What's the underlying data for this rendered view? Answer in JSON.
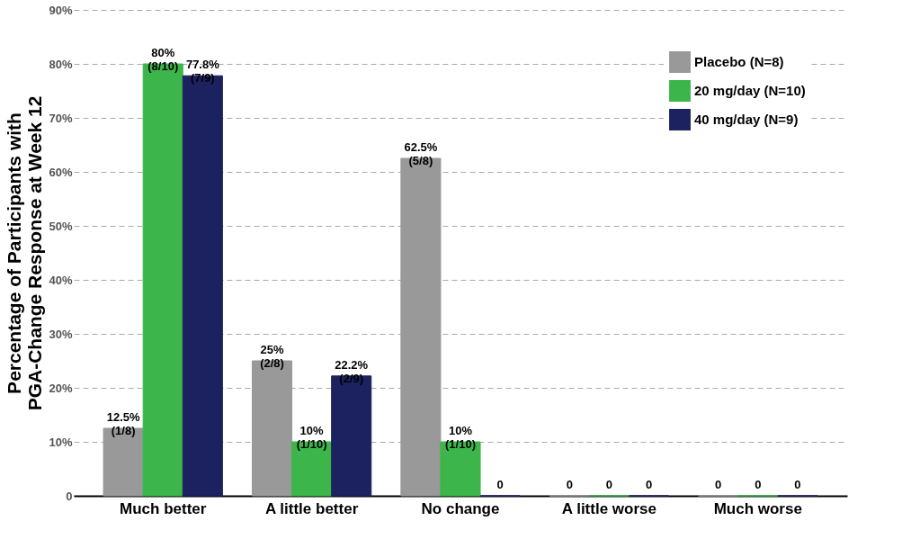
{
  "chart_data": {
    "type": "bar",
    "ylabel": "Percentage of Participants with\nPGA-Change Response at Week 12",
    "categories": [
      "Much better",
      "A little better",
      "No change",
      "A little worse",
      "Much worse"
    ],
    "series": [
      {
        "name": "Placebo (N=8)",
        "color": "#999999",
        "values": [
          12.5,
          25,
          62.5,
          0,
          0
        ],
        "value_labels": [
          "12.5%\n(1/8)",
          "25%\n(2/8)",
          "62.5%\n(5/8)",
          "0",
          "0"
        ]
      },
      {
        "name": "20 mg/day (N=10)",
        "color": "#3cb54a",
        "values": [
          80,
          10,
          10,
          0,
          0
        ],
        "value_labels": [
          "80%\n(8/10)",
          "10%\n(1/10)",
          "10%\n(1/10)",
          "0",
          "0"
        ]
      },
      {
        "name": "40 mg/day (N=9)",
        "color": "#1c2260",
        "values": [
          77.8,
          22.2,
          0,
          0,
          0
        ],
        "value_labels": [
          "77.8%\n(7/9)",
          "22.2%\n(2/9)",
          "0",
          "0",
          "0"
        ]
      }
    ],
    "ylim": [
      0,
      90
    ],
    "yticks": [
      0,
      {
        "value": 10,
        "label": "10%"
      },
      {
        "value": 20,
        "label": "20%"
      },
      {
        "value": 30,
        "label": "30%"
      },
      {
        "value": 40,
        "label": "40%"
      },
      {
        "value": 50,
        "label": "50%"
      },
      {
        "value": 60,
        "label": "60%"
      },
      {
        "value": 70,
        "label": "70%"
      },
      {
        "value": 80,
        "label": "80%"
      },
      {
        "value": 90,
        "label": "90%"
      }
    ],
    "grid": "y",
    "line_style": "dashed",
    "legend": "top right"
  }
}
